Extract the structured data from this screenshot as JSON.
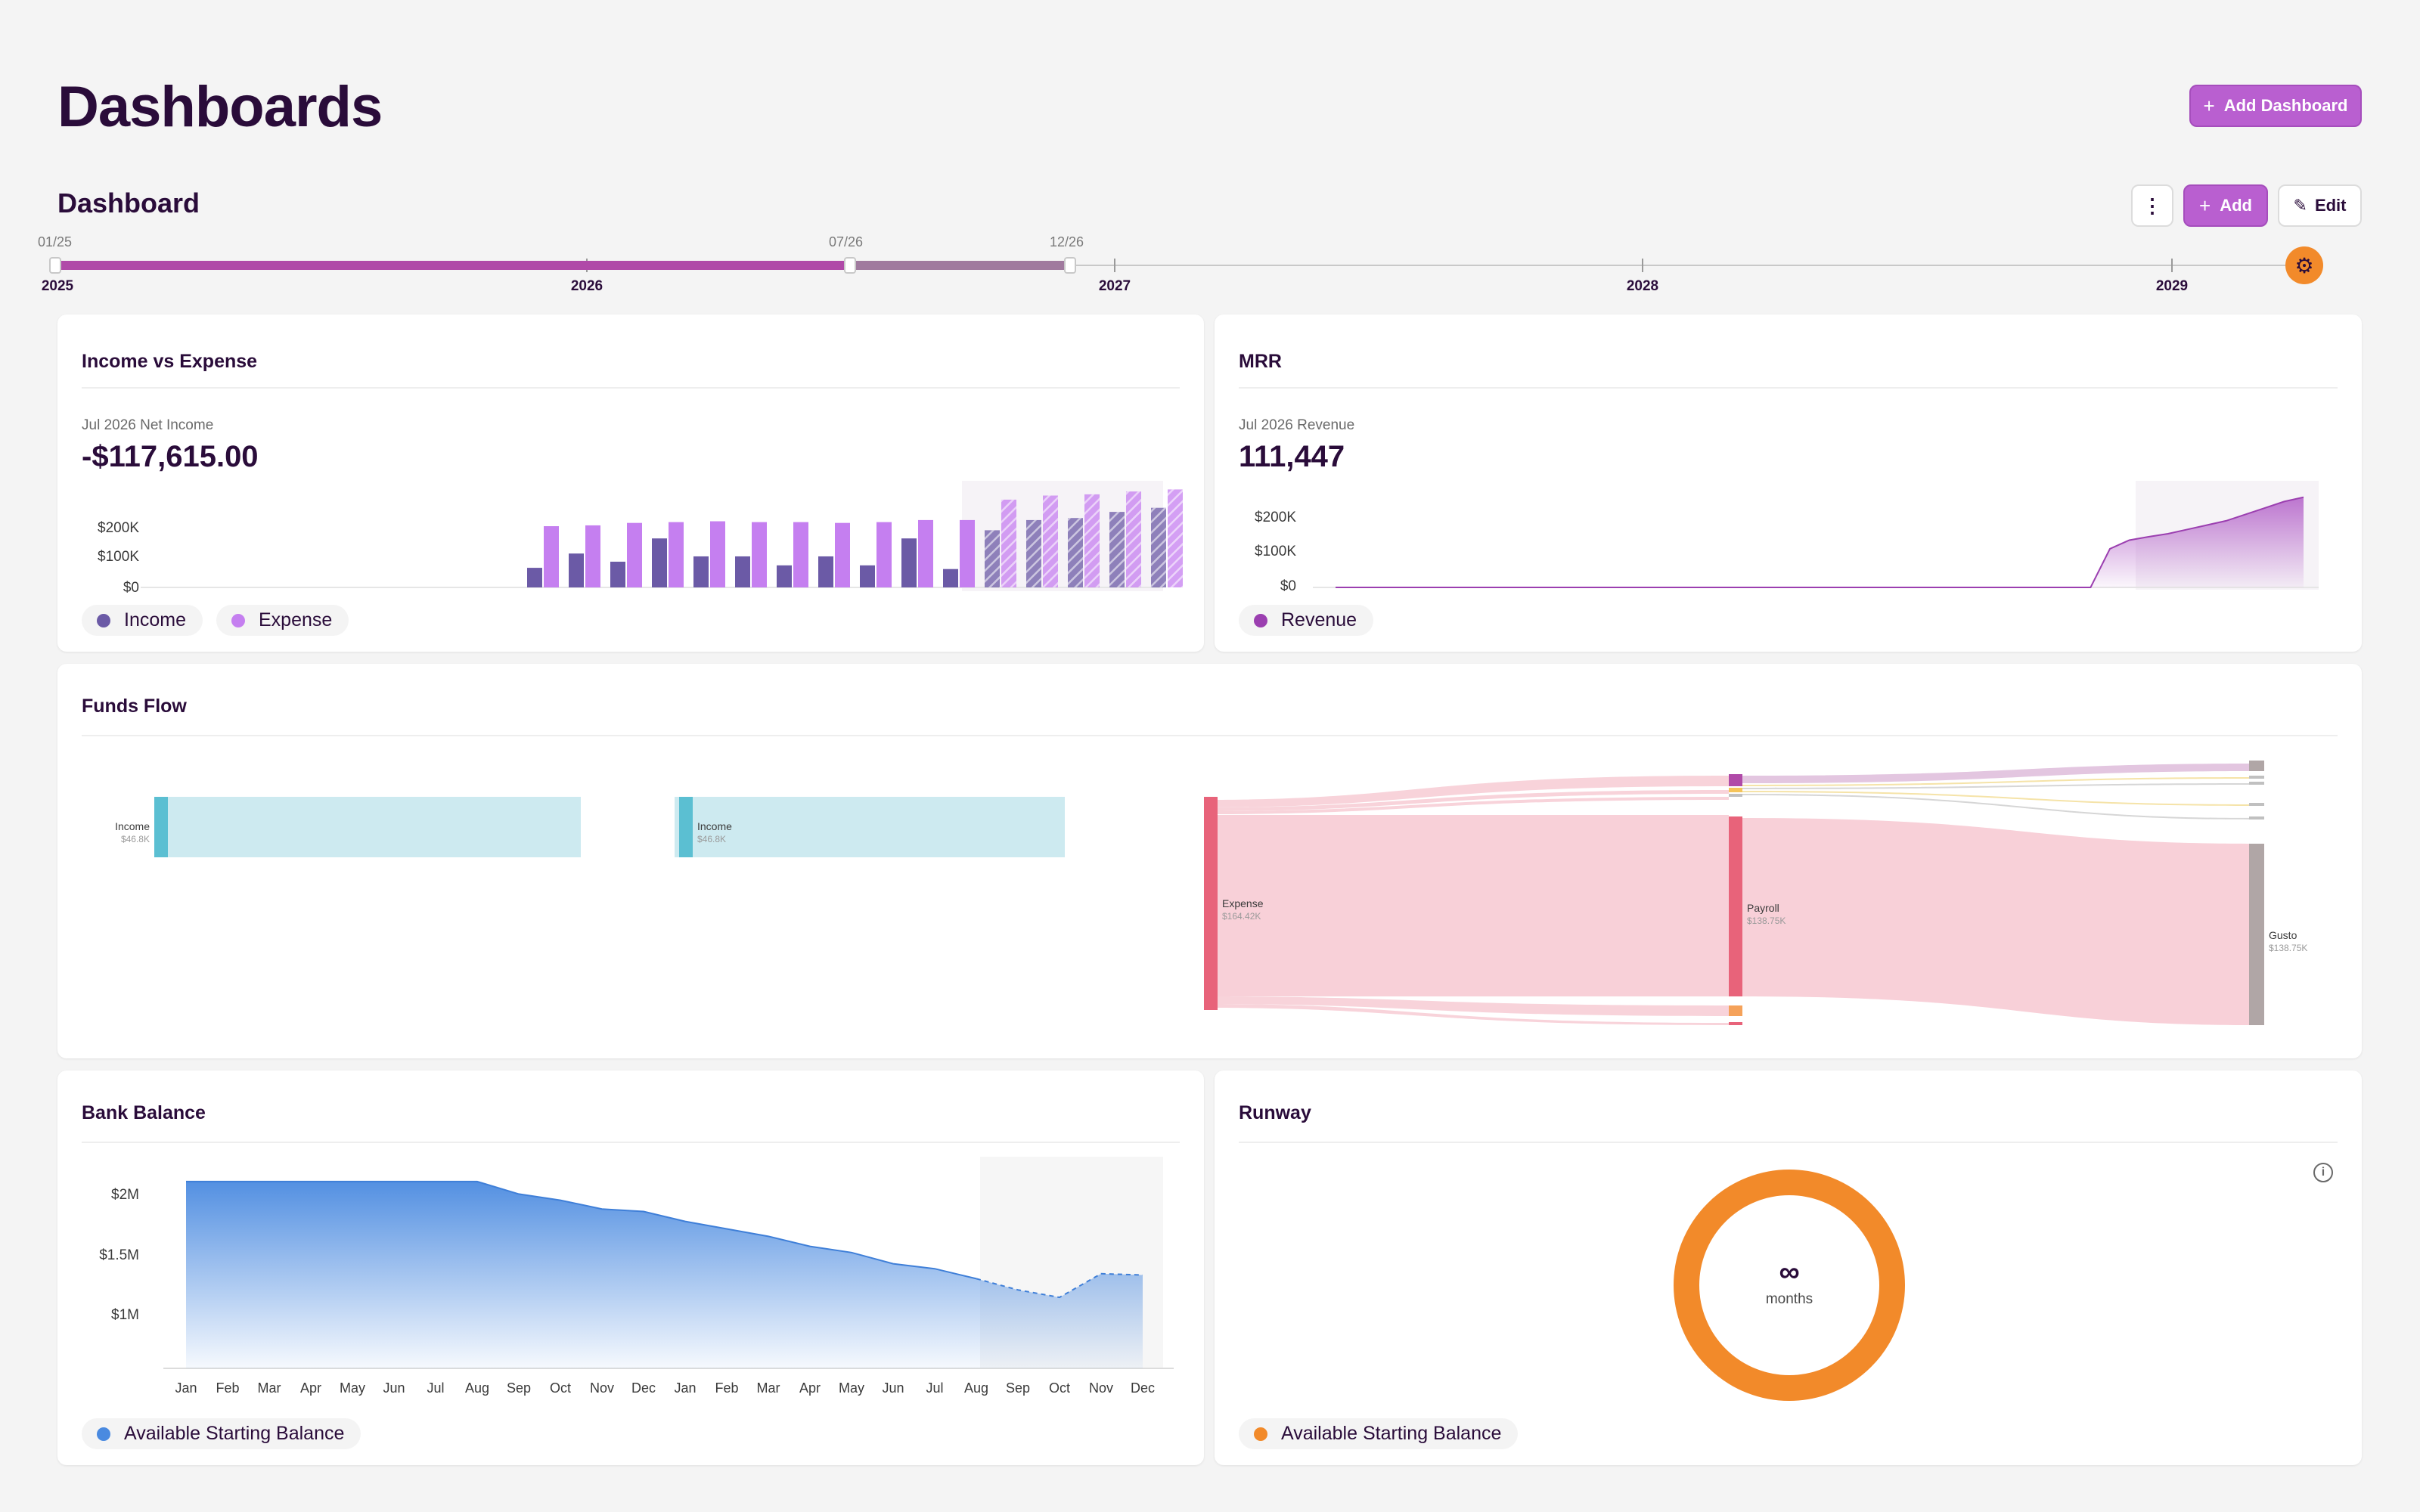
{
  "header": {
    "title": "Dashboards",
    "add_dashboard_label": "Add Dashboard"
  },
  "dashboard": {
    "name": "Dashboard",
    "add_label": "Add",
    "edit_label": "Edit"
  },
  "timeline": {
    "start_marker": "01/25",
    "mid_marker": "07/26",
    "end_marker": "12/26",
    "years": [
      "2025",
      "2026",
      "2027",
      "2028",
      "2029"
    ]
  },
  "income_vs_expense": {
    "title": "Income vs Expense",
    "kpi_label": "Jul 2026 Net Income",
    "kpi_value": "-$117,615.00",
    "legend": [
      {
        "label": "Income",
        "color": "#6b5aa6"
      },
      {
        "label": "Expense",
        "color": "#c57ff0"
      }
    ],
    "chart_data": {
      "type": "bar",
      "y_ticks": [
        "$200K",
        "$100K",
        "$0"
      ],
      "ylim": [
        0,
        250000
      ],
      "series": [
        {
          "name": "Income",
          "values": [
            0,
            0,
            0,
            0,
            0,
            0,
            0,
            0,
            0,
            48000,
            83000,
            63000,
            120000,
            76000,
            76000,
            54000,
            76000,
            54000,
            120000,
            45000,
            140000,
            165000,
            170000,
            185000,
            195000
          ]
        },
        {
          "name": "Expense",
          "values": [
            0,
            0,
            0,
            0,
            0,
            0,
            0,
            0,
            0,
            150000,
            152000,
            158000,
            160000,
            162000,
            160000,
            160000,
            158000,
            160000,
            165000,
            165000,
            215000,
            225000,
            228000,
            235000,
            240000
          ]
        }
      ],
      "forecast_from_index": 20
    }
  },
  "mrr": {
    "title": "MRR",
    "kpi_label": "Jul 2026 Revenue",
    "kpi_value": "111,447",
    "legend": [
      {
        "label": "Revenue",
        "color": "#9b3fb0"
      }
    ],
    "chart_data": {
      "type": "area",
      "y_ticks": [
        "$200K",
        "$100K",
        "$0"
      ],
      "ylim": [
        0,
        220000
      ],
      "series": [
        {
          "name": "Revenue",
          "values": [
            0,
            0,
            0,
            0,
            0,
            0,
            0,
            0,
            0,
            0,
            0,
            0,
            0,
            0,
            0,
            0,
            0,
            0,
            0,
            0,
            0,
            0,
            0,
            0,
            0,
            0,
            0,
            0,
            0,
            0,
            0,
            0,
            0,
            0,
            0,
            0,
            0,
            0,
            0,
            0,
            90000,
            110000,
            118000,
            125000,
            135000,
            145000,
            155000,
            170000,
            185000,
            200000,
            210000
          ]
        }
      ]
    }
  },
  "funds_flow": {
    "title": "Funds Flow",
    "nodes": [
      {
        "label": "Income",
        "value": "$46.8K"
      },
      {
        "label": "Income",
        "value": "$46.8K"
      },
      {
        "label": "Expense",
        "value": "$164.42K"
      },
      {
        "label": "Payroll",
        "value": "$138.75K"
      },
      {
        "label": "Gusto",
        "value": "$138.75K"
      }
    ]
  },
  "bank_balance": {
    "title": "Bank Balance",
    "legend": [
      {
        "label": "Available Starting Balance",
        "color": "#4a8ae0"
      }
    ],
    "chart_data": {
      "type": "area",
      "y_ticks": [
        "$2M",
        "$1.5M",
        "$1M"
      ],
      "categories": [
        "Jan",
        "Feb",
        "Mar",
        "Apr",
        "May",
        "Jun",
        "Jul",
        "Aug",
        "Sep",
        "Oct",
        "Nov",
        "Dec",
        "Jan",
        "Feb",
        "Mar",
        "Apr",
        "May",
        "Jun",
        "Jul",
        "Aug",
        "Sep",
        "Oct",
        "Nov",
        "Dec"
      ],
      "series": [
        {
          "name": "Available Starting Balance",
          "values": [
            2000000,
            2000000,
            2000000,
            2000000,
            2000000,
            2000000,
            2000000,
            2000000,
            1900000,
            1850000,
            1780000,
            1760000,
            1680000,
            1620000,
            1560000,
            1480000,
            1430000,
            1340000,
            1300000,
            1220000,
            1130000,
            1070000,
            1260000,
            1250000
          ]
        }
      ],
      "ylim": [
        500000,
        2200000
      ],
      "forecast_from_index": 19
    }
  },
  "runway": {
    "title": "Runway",
    "value": "∞",
    "unit": "months",
    "legend": [
      {
        "label": "Available Starting Balance",
        "color": "#f28a2a"
      }
    ]
  }
}
